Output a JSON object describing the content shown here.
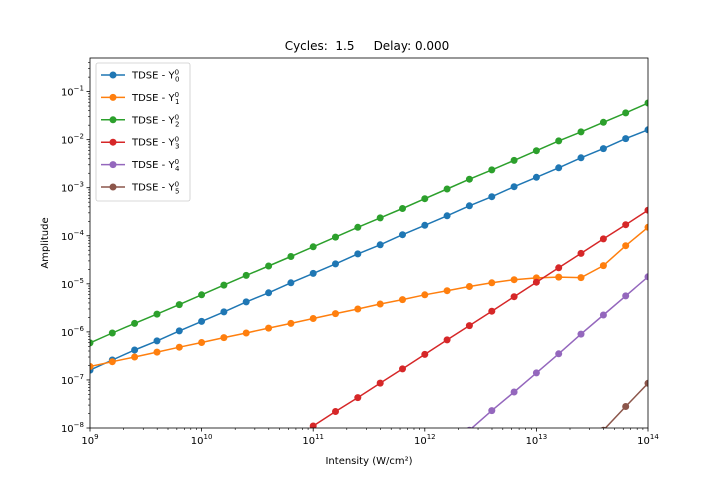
{
  "chart_data": {
    "type": "line",
    "title": "Cycles:  1.5     Delay: 0.000",
    "xlabel": "Intensity (W/cm²)",
    "ylabel": "Amplitude",
    "xscale": "log",
    "yscale": "log",
    "xlim": [
      1000000000.0,
      100000000000000.0
    ],
    "ylim": [
      1e-08,
      0.5
    ],
    "grid": false,
    "legend_position": "top-left",
    "x_ticks": [
      {
        "value": 1000000000.0,
        "base": "10",
        "exp": "9"
      },
      {
        "value": 10000000000.0,
        "base": "10",
        "exp": "10"
      },
      {
        "value": 100000000000.0,
        "base": "10",
        "exp": "11"
      },
      {
        "value": 1000000000000.0,
        "base": "10",
        "exp": "12"
      },
      {
        "value": 10000000000000.0,
        "base": "10",
        "exp": "13"
      },
      {
        "value": 100000000000000.0,
        "base": "10",
        "exp": "14"
      }
    ],
    "y_ticks": [
      {
        "value": 1e-08,
        "base": "10",
        "exp": "−8"
      },
      {
        "value": 1e-07,
        "base": "10",
        "exp": "−7"
      },
      {
        "value": 1e-06,
        "base": "10",
        "exp": "−6"
      },
      {
        "value": 1e-05,
        "base": "10",
        "exp": "−5"
      },
      {
        "value": 0.0001,
        "base": "10",
        "exp": "−4"
      },
      {
        "value": 0.001,
        "base": "10",
        "exp": "−3"
      },
      {
        "value": 0.01,
        "base": "10",
        "exp": "−2"
      },
      {
        "value": 0.1,
        "base": "10",
        "exp": "−1"
      }
    ],
    "x": [
      1000000000.0,
      1585000000.0,
      2512000000.0,
      3981000000.0,
      6310000000.0,
      10000000000.0,
      15850000000.0,
      25120000000.0,
      39810000000.0,
      63100000000.0,
      100000000000.0,
      158500000000.0,
      251200000000.0,
      398100000000.0,
      631000000000.0,
      1000000000000.0,
      1585000000000.0,
      2512000000000.0,
      3981000000000.0,
      6310000000000.0,
      10000000000000.0,
      15850000000000.0,
      25120000000000.0,
      39810000000000.0,
      63100000000000.0,
      100000000000000.0
    ],
    "series": [
      {
        "name": "TDSE - Y",
        "sub": "0",
        "sup": "0",
        "color": "#1f77b4",
        "values": [
          1.6e-07,
          2.6e-07,
          4.2e-07,
          6.5e-07,
          1.05e-06,
          1.65e-06,
          2.6e-06,
          4.2e-06,
          6.5e-06,
          1.05e-05,
          1.65e-05,
          2.6e-05,
          4.2e-05,
          6.5e-05,
          0.000105,
          0.000165,
          0.00026,
          0.00042,
          0.00065,
          0.00105,
          0.00165,
          0.0026,
          0.0042,
          0.0065,
          0.0105,
          0.016
        ]
      },
      {
        "name": "TDSE - Y",
        "sub": "1",
        "sup": "0",
        "color": "#ff7f0e",
        "values": [
          1.9e-07,
          2.4e-07,
          3e-07,
          3.8e-07,
          4.8e-07,
          6e-07,
          7.6e-07,
          9.5e-07,
          1.2e-06,
          1.5e-06,
          1.9e-06,
          2.4e-06,
          3e-06,
          3.8e-06,
          4.7e-06,
          5.9e-06,
          7.2e-06,
          8.8e-06,
          1.05e-05,
          1.22e-05,
          1.33e-05,
          1.38e-05,
          1.35e-05,
          2.4e-05,
          6.2e-05,
          0.00015
        ]
      },
      {
        "name": "TDSE - Y",
        "sub": "2",
        "sup": "0",
        "color": "#2ca02c",
        "values": [
          5.9e-07,
          9.5e-07,
          1.5e-06,
          2.35e-06,
          3.7e-06,
          5.9e-06,
          9.4e-06,
          1.5e-05,
          2.35e-05,
          3.7e-05,
          5.9e-05,
          9.4e-05,
          0.00015,
          0.000235,
          0.00037,
          0.00059,
          0.00094,
          0.0015,
          0.00235,
          0.0037,
          0.0059,
          0.0094,
          0.0145,
          0.023,
          0.036,
          0.058
        ]
      },
      {
        "name": "TDSE - Y",
        "sub": "3",
        "sup": "0",
        "color": "#d62728",
        "values": [
          null,
          null,
          null,
          null,
          null,
          null,
          null,
          null,
          null,
          null,
          1.1e-08,
          2.2e-08,
          4.3e-08,
          8.6e-08,
          1.7e-07,
          3.4e-07,
          6.8e-07,
          1.35e-06,
          2.7e-06,
          5.4e-06,
          1.08e-05,
          2.15e-05,
          4.3e-05,
          8.6e-05,
          0.00017,
          0.00034
        ]
      },
      {
        "name": "TDSE - Y",
        "sub": "4",
        "sup": "0",
        "color": "#9467bd",
        "values": [
          null,
          null,
          null,
          null,
          null,
          null,
          null,
          null,
          null,
          null,
          null,
          null,
          null,
          null,
          null,
          null,
          null,
          9e-09,
          2.3e-08,
          5.6e-08,
          1.4e-07,
          3.5e-07,
          9e-07,
          2.25e-06,
          5.6e-06,
          1.4e-05
        ]
      },
      {
        "name": "TDSE - Y",
        "sub": "5",
        "sup": "0",
        "color": "#8c564b",
        "values": [
          null,
          null,
          null,
          null,
          null,
          null,
          null,
          null,
          null,
          null,
          null,
          null,
          null,
          null,
          null,
          null,
          null,
          null,
          null,
          null,
          null,
          null,
          null,
          9e-09,
          2.8e-08,
          8.5e-08
        ]
      }
    ]
  }
}
